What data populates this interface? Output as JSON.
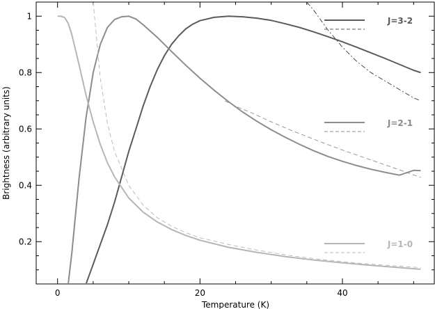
{
  "chart_data": {
    "type": "line",
    "title": "",
    "xlabel": "Temperature (K)",
    "ylabel": "Brightness (arbitrary units)",
    "xlim": [
      -3,
      53
    ],
    "ylim": [
      0.05,
      1.05
    ],
    "x_ticks": [
      0,
      20,
      40
    ],
    "y_ticks": [
      0.2,
      0.4,
      0.6,
      0.8,
      1
    ],
    "grid": false,
    "legend_position": "right",
    "series": [
      {
        "name": "J=3-2",
        "color": "#5a5a5a",
        "style": "solid",
        "x": [
          4,
          5,
          6,
          7,
          8,
          9,
          10,
          11,
          12,
          13,
          14,
          15,
          16,
          17,
          18,
          19,
          20,
          22,
          24,
          26,
          28,
          30,
          32,
          34,
          36,
          38,
          40,
          42,
          44,
          46,
          48,
          50,
          51
        ],
        "y": [
          0.05,
          0.12,
          0.19,
          0.26,
          0.34,
          0.43,
          0.52,
          0.6,
          0.68,
          0.75,
          0.81,
          0.86,
          0.9,
          0.93,
          0.955,
          0.972,
          0.984,
          0.996,
          1.0,
          0.998,
          0.993,
          0.985,
          0.973,
          0.96,
          0.944,
          0.927,
          0.909,
          0.89,
          0.87,
          0.85,
          0.829,
          0.808,
          0.8
        ]
      },
      {
        "name": "J=3-2 (dashed)",
        "color": "#3a3a3a",
        "style": "dashdot",
        "x": [
          35,
          36,
          38,
          40,
          42,
          44,
          46,
          48,
          50,
          51
        ],
        "y": [
          1.05,
          1.02,
          0.95,
          0.89,
          0.84,
          0.8,
          0.77,
          0.74,
          0.71,
          0.7
        ]
      },
      {
        "name": "J=2-1",
        "color": "#8c8c8c",
        "style": "solid",
        "x": [
          1.5,
          2,
          3,
          4,
          5,
          6,
          7,
          8,
          9,
          10,
          11,
          12,
          14,
          16,
          18,
          20,
          22,
          24,
          26,
          28,
          30,
          32,
          34,
          36,
          38,
          40,
          42,
          44,
          46,
          48,
          50,
          51
        ],
        "y": [
          0.05,
          0.16,
          0.42,
          0.64,
          0.8,
          0.9,
          0.96,
          0.988,
          0.998,
          1.0,
          0.99,
          0.97,
          0.925,
          0.875,
          0.826,
          0.78,
          0.737,
          0.697,
          0.66,
          0.627,
          0.597,
          0.57,
          0.545,
          0.522,
          0.502,
          0.485,
          0.47,
          0.457,
          0.446,
          0.436,
          0.453,
          0.452
        ]
      },
      {
        "name": "J=2-1 (dashed)",
        "color": "#8c8c8c",
        "style": "dashed",
        "x": [
          23.5,
          25,
          27,
          30,
          33,
          36,
          40,
          44,
          48,
          51
        ],
        "y": [
          0.7,
          0.68,
          0.66,
          0.625,
          0.593,
          0.563,
          0.525,
          0.49,
          0.455,
          0.428
        ]
      },
      {
        "name": "J=1-0",
        "color": "#b5b5b5",
        "style": "solid",
        "x": [
          0,
          0.5,
          1,
          1.5,
          2,
          3,
          4,
          5,
          6,
          7,
          8,
          10,
          12,
          14,
          16,
          18,
          20,
          24,
          28,
          32,
          36,
          40,
          44,
          48,
          51
        ],
        "y": [
          1.0,
          1.0,
          0.995,
          0.975,
          0.935,
          0.83,
          0.72,
          0.625,
          0.545,
          0.48,
          0.43,
          0.355,
          0.305,
          0.27,
          0.243,
          0.222,
          0.205,
          0.18,
          0.162,
          0.147,
          0.135,
          0.125,
          0.116,
          0.108,
          0.102
        ]
      },
      {
        "name": "J=1-0 (dashed)",
        "color": "#b5b5b5",
        "style": "dashed",
        "x": [
          5,
          6,
          7,
          8,
          10,
          12,
          14,
          16,
          18,
          20,
          24,
          28,
          32,
          36,
          40,
          44,
          48,
          51
        ],
        "y": [
          1.05,
          0.78,
          0.62,
          0.52,
          0.4,
          0.33,
          0.285,
          0.255,
          0.232,
          0.214,
          0.19,
          0.17,
          0.153,
          0.14,
          0.129,
          0.12,
          0.113,
          0.108
        ]
      }
    ],
    "legend": [
      {
        "label": "J=3-2",
        "color": "#5a5a5a"
      },
      {
        "label": "J=2-1",
        "color": "#8c8c8c"
      },
      {
        "label": "J=1-0",
        "color": "#b5b5b5"
      }
    ]
  }
}
